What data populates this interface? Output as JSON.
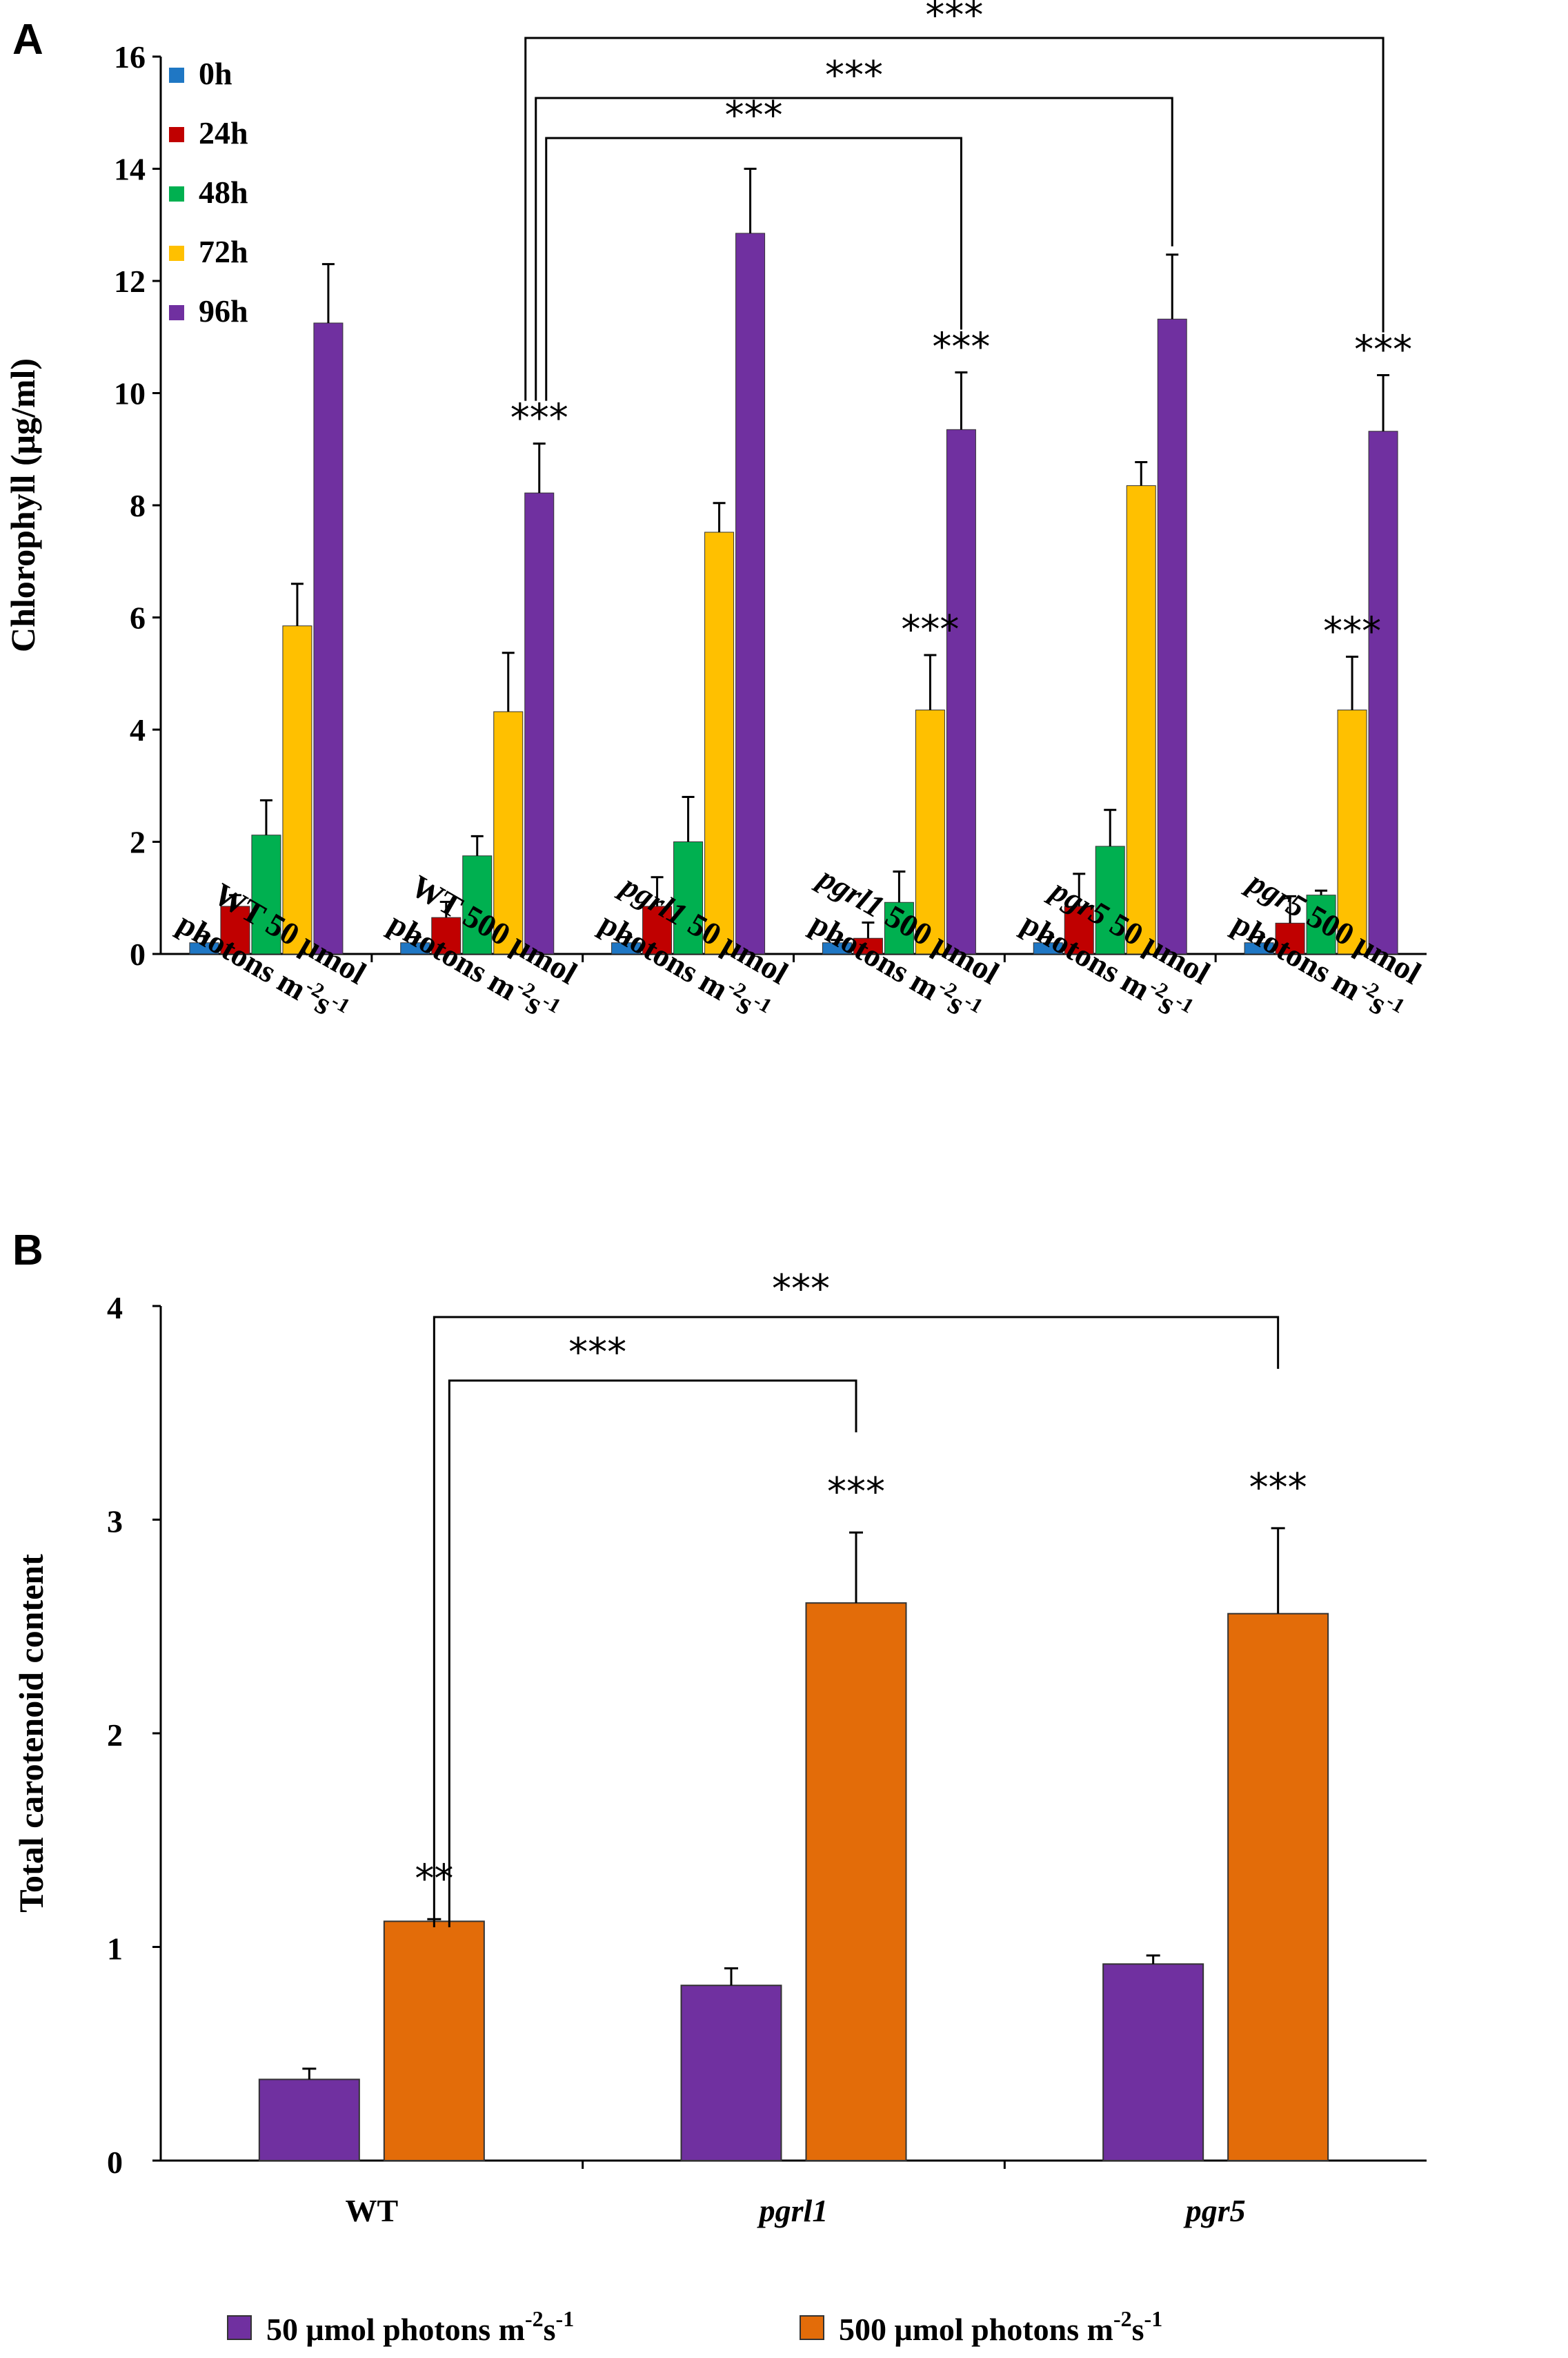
{
  "panels": {
    "a": "A",
    "b": "B"
  },
  "chart_data": [
    {
      "type": "bar",
      "panel": "A",
      "ylabel": "Chlorophyll (μg/ml)",
      "ylim": [
        0,
        16
      ],
      "yticks": [
        "0",
        "2",
        "4",
        "6",
        "8",
        "10",
        "12",
        "14",
        "16"
      ],
      "categories": [
        {
          "gene": "WT",
          "light": "50 μmol",
          "line2": "photons m",
          "sup1": "-2",
          "mid": "s",
          "sup2": "-1",
          "italic": false
        },
        {
          "gene": "WT",
          "light": "500 μmol",
          "line2": "photons m",
          "sup1": "-2",
          "mid": "s",
          "sup2": "-1",
          "italic": false
        },
        {
          "gene": "pgrl1",
          "light": "50 μmol",
          "line2": "photons m",
          "sup1": "-2",
          "mid": "s",
          "sup2": "-1",
          "italic": true
        },
        {
          "gene": "pgrl1",
          "light": "500 μmol",
          "line2": "photons m",
          "sup1": "-2",
          "mid": "s",
          "sup2": "-1",
          "italic": true
        },
        {
          "gene": "pgr5",
          "light": "50 μmol",
          "line2": "photons m",
          "sup1": "-2",
          "mid": "s",
          "sup2": "-1",
          "italic": true
        },
        {
          "gene": "pgr5",
          "light": "500 μmol",
          "line2": "photons m",
          "sup1": "-2",
          "mid": "s",
          "sup2": "-1",
          "italic": true
        }
      ],
      "series": [
        {
          "name": "0h",
          "color": "#1f77c4",
          "values": [
            0.2,
            0.2,
            0.2,
            0.2,
            0.2,
            0.2
          ],
          "errors": [
            0.12,
            0.1,
            0.1,
            0.05,
            0.1,
            0.1
          ]
        },
        {
          "name": "24h",
          "color": "#c00000",
          "values": [
            0.85,
            0.65,
            0.85,
            0.28,
            0.85,
            0.55
          ],
          "errors": [
            0.2,
            0.28,
            0.52,
            0.28,
            0.58,
            0.48
          ]
        },
        {
          "name": "48h",
          "color": "#00b050",
          "values": [
            2.12,
            1.75,
            2.0,
            0.92,
            1.92,
            1.05
          ],
          "errors": [
            0.62,
            0.35,
            0.8,
            0.55,
            0.65,
            0.08
          ]
        },
        {
          "name": "72h",
          "color": "#ffc000",
          "values": [
            5.85,
            4.32,
            7.52,
            4.35,
            8.35,
            4.35
          ],
          "errors": [
            0.75,
            1.05,
            0.52,
            0.98,
            0.42,
            0.95
          ]
        },
        {
          "name": "96h",
          "color": "#7030a0",
          "values": [
            11.25,
            8.22,
            12.85,
            9.35,
            11.32,
            9.32
          ],
          "errors": [
            1.05,
            0.88,
            1.15,
            1.02,
            1.15,
            1.0
          ]
        }
      ],
      "bar_annotations": [
        {
          "category": 1,
          "series": 4,
          "text": "***"
        },
        {
          "category": 3,
          "series": 3,
          "text": "***"
        },
        {
          "category": 3,
          "series": 4,
          "text": "***"
        },
        {
          "category": 5,
          "series": 3,
          "text": "***"
        },
        {
          "category": 5,
          "series": 4,
          "text": "***"
        }
      ],
      "brackets": [
        {
          "from": 1,
          "to": 3,
          "text": "***"
        },
        {
          "from": 1,
          "to": 4,
          "text": "***"
        },
        {
          "from": 1,
          "to": 5,
          "text": "***"
        }
      ]
    },
    {
      "type": "bar",
      "panel": "B",
      "ylabel": "Total carotenoid content",
      "ylim": [
        0,
        4
      ],
      "yticks": [
        "0",
        "1",
        "2",
        "3",
        "4"
      ],
      "categories": [
        {
          "label": "WT",
          "italic": false
        },
        {
          "label": "pgrl1",
          "italic": true
        },
        {
          "label": "pgr5",
          "italic": true
        }
      ],
      "series": [
        {
          "name": "50 μmol photons m",
          "sup1": "-2",
          "mid": "s",
          "sup2": "-1",
          "color": "#7030a0",
          "values": [
            0.38,
            0.82,
            0.92
          ],
          "errors": [
            0.05,
            0.08,
            0.04
          ]
        },
        {
          "name": "500 μmol photons m",
          "sup1": "-2",
          "mid": "s",
          "sup2": "-1",
          "color": "#e36c09",
          "values": [
            1.12,
            2.61,
            2.56
          ],
          "errors": [
            0.01,
            0.33,
            0.4
          ]
        }
      ],
      "bar_annotations": [
        {
          "category": 0,
          "series": 1,
          "text": "**"
        },
        {
          "category": 1,
          "series": 1,
          "text": "***"
        },
        {
          "category": 2,
          "series": 1,
          "text": "***"
        }
      ],
      "brackets": [
        {
          "from": 0,
          "to": 1,
          "text": "***"
        },
        {
          "from": 0,
          "to": 2,
          "text": "***"
        }
      ]
    }
  ]
}
